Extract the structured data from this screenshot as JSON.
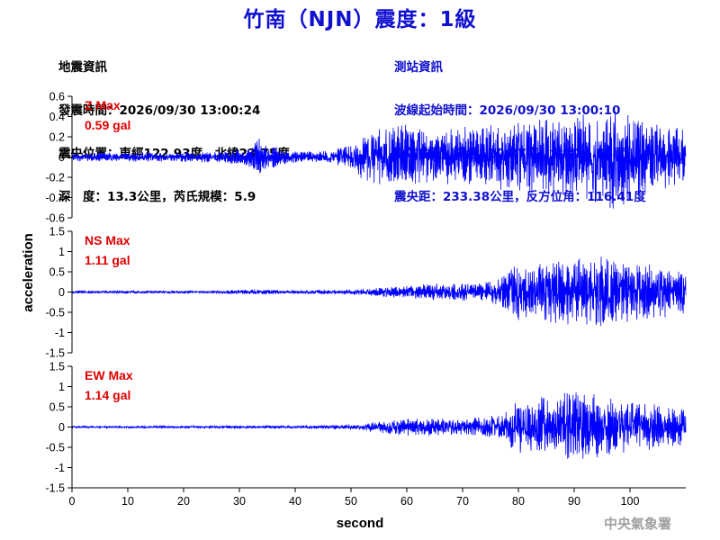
{
  "title": "竹南（NJN）震度：1級",
  "event": {
    "header": "地震資訊",
    "time": "發震時間：2026/09/30 13:00:24",
    "epicenter": "震央位置：東經122.93度，北緯23.75度",
    "depth": "深　度：13.3公里，芮氏規模：5.9"
  },
  "station": {
    "header": "測站資訊",
    "wave_start": "波線起始時間：2026/09/30 13:00:10",
    "location": "測站位置：東經120.87度，北緯24.68度",
    "distance": "震央距：233.38公里，反方位角：116.41度"
  },
  "watermark": "中央氣象署",
  "colors": {
    "trace": "#0000ff",
    "title": "#1010d0",
    "max_label": "#e00000",
    "watermark": "#a0a0a0"
  },
  "chart_data": [
    {
      "type": "line",
      "component": "Z",
      "max_label": "Z Max",
      "max_value": "0.59 gal",
      "ylim": [
        -0.6,
        0.6
      ],
      "yticks": [
        -0.6,
        -0.4,
        -0.2,
        0,
        0.2,
        0.4,
        0.6
      ],
      "ytick_labels": [
        "-0.6",
        "-0.4",
        "-0.2",
        "0",
        "0.2",
        "0.4",
        "0.6"
      ],
      "envelope": [
        [
          0,
          0.04
        ],
        [
          10,
          0.04
        ],
        [
          25,
          0.05
        ],
        [
          30,
          0.07
        ],
        [
          32,
          0.1
        ],
        [
          33,
          0.22
        ],
        [
          34.5,
          0.12
        ],
        [
          40,
          0.05
        ],
        [
          46,
          0.06
        ],
        [
          50,
          0.12
        ],
        [
          52,
          0.2
        ],
        [
          55,
          0.28
        ],
        [
          60,
          0.3
        ],
        [
          65,
          0.25
        ],
        [
          70,
          0.27
        ],
        [
          75,
          0.3
        ],
        [
          80,
          0.33
        ],
        [
          85,
          0.35
        ],
        [
          90,
          0.38
        ],
        [
          95,
          0.45
        ],
        [
          97,
          0.5
        ],
        [
          100,
          0.4
        ],
        [
          105,
          0.3
        ],
        [
          110,
          0.25
        ]
      ]
    },
    {
      "type": "line",
      "component": "NS",
      "max_label": "NS Max",
      "max_value": "1.11 gal",
      "ylim": [
        -1.5,
        1.5
      ],
      "yticks": [
        -1.5,
        -1,
        -0.5,
        0,
        0.5,
        1,
        1.5
      ],
      "ytick_labels": [
        "-1.5",
        "-1",
        "-0.5",
        "0",
        "0.5",
        "1",
        "1.5"
      ],
      "envelope": [
        [
          0,
          0.03
        ],
        [
          25,
          0.03
        ],
        [
          30,
          0.05
        ],
        [
          35,
          0.06
        ],
        [
          40,
          0.04
        ],
        [
          50,
          0.06
        ],
        [
          55,
          0.1
        ],
        [
          60,
          0.15
        ],
        [
          65,
          0.2
        ],
        [
          70,
          0.2
        ],
        [
          75,
          0.25
        ],
        [
          78,
          0.45
        ],
        [
          80,
          0.65
        ],
        [
          85,
          0.7
        ],
        [
          90,
          0.75
        ],
        [
          95,
          0.85
        ],
        [
          100,
          0.7
        ],
        [
          105,
          0.6
        ],
        [
          110,
          0.5
        ]
      ]
    },
    {
      "type": "line",
      "component": "EW",
      "max_label": "EW Max",
      "max_value": "1.14 gal",
      "ylim": [
        -1.5,
        1.5
      ],
      "yticks": [
        -1.5,
        -1,
        -0.5,
        0,
        0.5,
        1,
        1.5
      ],
      "ytick_labels": [
        "-1.5",
        "-1",
        "-0.5",
        "0",
        "0.5",
        "1",
        "1.5"
      ],
      "envelope": [
        [
          0,
          0.02
        ],
        [
          30,
          0.03
        ],
        [
          45,
          0.04
        ],
        [
          52,
          0.08
        ],
        [
          55,
          0.15
        ],
        [
          60,
          0.2
        ],
        [
          65,
          0.2
        ],
        [
          70,
          0.18
        ],
        [
          75,
          0.25
        ],
        [
          78,
          0.4
        ],
        [
          80,
          0.6
        ],
        [
          85,
          0.75
        ],
        [
          90,
          0.85
        ],
        [
          95,
          0.7
        ],
        [
          100,
          0.6
        ],
        [
          105,
          0.5
        ],
        [
          110,
          0.4
        ]
      ]
    }
  ],
  "xaxis": {
    "label": "second",
    "xlim": [
      0,
      110
    ],
    "ticks": [
      0,
      10,
      20,
      30,
      40,
      50,
      60,
      70,
      80,
      90,
      100
    ],
    "tick_labels": [
      "0",
      "10",
      "20",
      "30",
      "40",
      "50",
      "60",
      "70",
      "80",
      "90",
      "100"
    ]
  },
  "yaxis_label": "acceleration"
}
